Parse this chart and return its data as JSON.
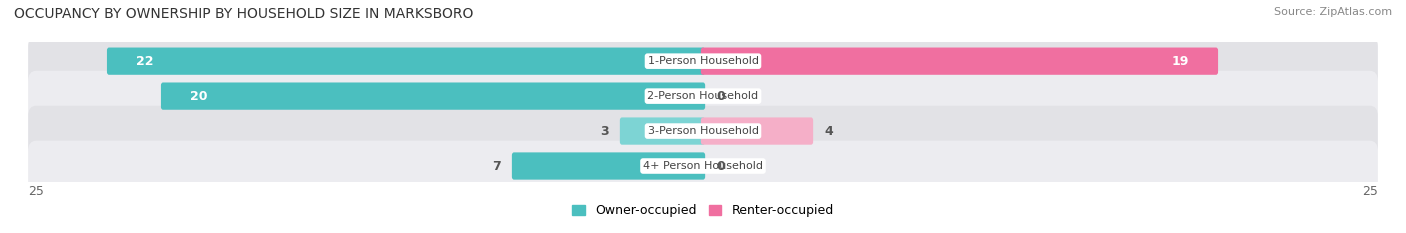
{
  "title": "OCCUPANCY BY OWNERSHIP BY HOUSEHOLD SIZE IN MARKSBORO",
  "source": "Source: ZipAtlas.com",
  "categories": [
    "1-Person Household",
    "2-Person Household",
    "3-Person Household",
    "4+ Person Household"
  ],
  "owner_values": [
    22,
    20,
    3,
    7
  ],
  "renter_values": [
    19,
    0,
    4,
    0
  ],
  "owner_color": "#4bbfbf",
  "owner_color_light": "#7dd4d4",
  "renter_color": "#f06fa0",
  "renter_color_light": "#f5afc8",
  "row_bg_color_dark": "#e2e2e6",
  "row_bg_color_light": "#ececf0",
  "xlim": 25,
  "title_fontsize": 10,
  "source_fontsize": 8,
  "tick_fontsize": 9,
  "bar_label_fontsize": 9,
  "category_fontsize": 8,
  "legend_fontsize": 9,
  "figsize": [
    14.06,
    2.33
  ],
  "dpi": 100
}
